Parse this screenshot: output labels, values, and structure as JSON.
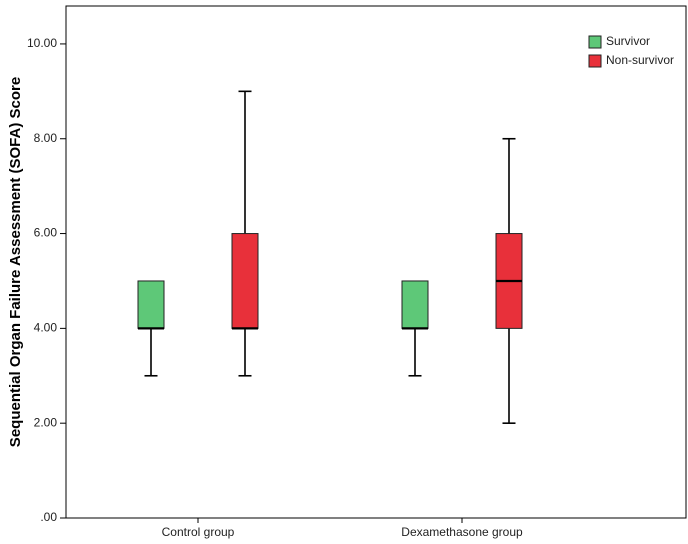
{
  "chart_data": {
    "type": "boxplot",
    "ylabel": "Sequential Organ Failure Assessment (SOFA) Score",
    "xlabel": "",
    "ylim": [
      0,
      10.8
    ],
    "yticks": [
      0,
      2,
      4,
      6,
      8,
      10
    ],
    "ytick_labels": [
      ".00",
      "2.00",
      "4.00",
      "6.00",
      "8.00",
      "10.00"
    ],
    "categories": [
      "Control group",
      "Dexamethasone group"
    ],
    "legend_position": "top-right",
    "grid": false,
    "series": [
      {
        "name": "Survivor",
        "color": "#5ec878",
        "boxes": [
          {
            "min": 3,
            "q1": 4,
            "median": 4,
            "q3": 5,
            "max": 5
          },
          {
            "min": 3,
            "q1": 4,
            "median": 4,
            "q3": 5,
            "max": 5
          }
        ]
      },
      {
        "name": "Non-survivor",
        "color": "#e8303a",
        "boxes": [
          {
            "min": 3,
            "q1": 4,
            "median": 4,
            "q3": 6,
            "max": 9
          },
          {
            "min": 2,
            "q1": 4,
            "median": 5,
            "q3": 6,
            "max": 8
          }
        ]
      }
    ]
  }
}
